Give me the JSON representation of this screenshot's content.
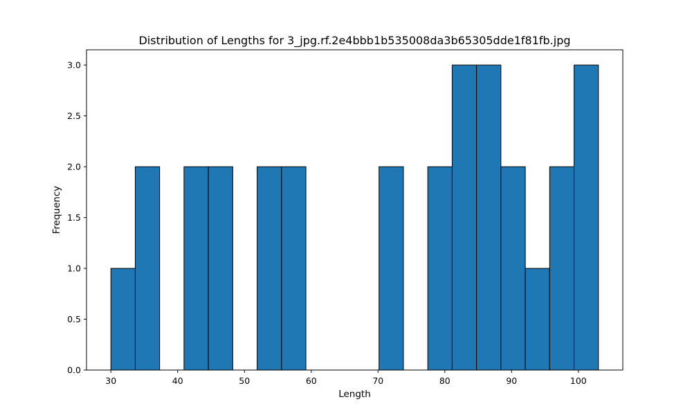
{
  "chart_data": {
    "type": "bar",
    "subtype": "histogram",
    "title": "Distribution of Lengths for 3_jpg.rf.2e4bbb1b535008da3b65305dde1f81fb.jpg",
    "xlabel": "Length",
    "ylabel": "Frequency",
    "xlim": [
      26.35,
      106.65
    ],
    "ylim": [
      0,
      3.15
    ],
    "xticks": [
      30,
      40,
      50,
      60,
      70,
      80,
      90,
      100
    ],
    "yticks": [
      "0.0",
      "0.5",
      "1.0",
      "1.5",
      "2.0",
      "2.5",
      "3.0"
    ],
    "grid": false,
    "bins": [
      {
        "x0": 30.0,
        "x1": 33.65,
        "count": 1
      },
      {
        "x0": 33.65,
        "x1": 37.3,
        "count": 2
      },
      {
        "x0": 37.3,
        "x1": 40.95,
        "count": 0
      },
      {
        "x0": 40.95,
        "x1": 44.6,
        "count": 2
      },
      {
        "x0": 44.6,
        "x1": 48.25,
        "count": 2
      },
      {
        "x0": 48.25,
        "x1": 51.9,
        "count": 0
      },
      {
        "x0": 51.9,
        "x1": 55.55,
        "count": 2
      },
      {
        "x0": 55.55,
        "x1": 59.2,
        "count": 2
      },
      {
        "x0": 59.2,
        "x1": 62.85,
        "count": 0
      },
      {
        "x0": 62.85,
        "x1": 66.5,
        "count": 0
      },
      {
        "x0": 66.5,
        "x1": 70.15,
        "count": 0
      },
      {
        "x0": 70.15,
        "x1": 73.8,
        "count": 2
      },
      {
        "x0": 73.8,
        "x1": 77.45,
        "count": 0
      },
      {
        "x0": 77.45,
        "x1": 81.1,
        "count": 2
      },
      {
        "x0": 81.1,
        "x1": 84.75,
        "count": 3
      },
      {
        "x0": 84.75,
        "x1": 88.4,
        "count": 3
      },
      {
        "x0": 88.4,
        "x1": 92.05,
        "count": 2
      },
      {
        "x0": 92.05,
        "x1": 95.7,
        "count": 1
      },
      {
        "x0": 95.7,
        "x1": 99.35,
        "count": 2
      },
      {
        "x0": 99.35,
        "x1": 103.0,
        "count": 3
      }
    ],
    "colors": {
      "bar_fill": "#1f77b4",
      "bar_edge": "#000000"
    }
  }
}
